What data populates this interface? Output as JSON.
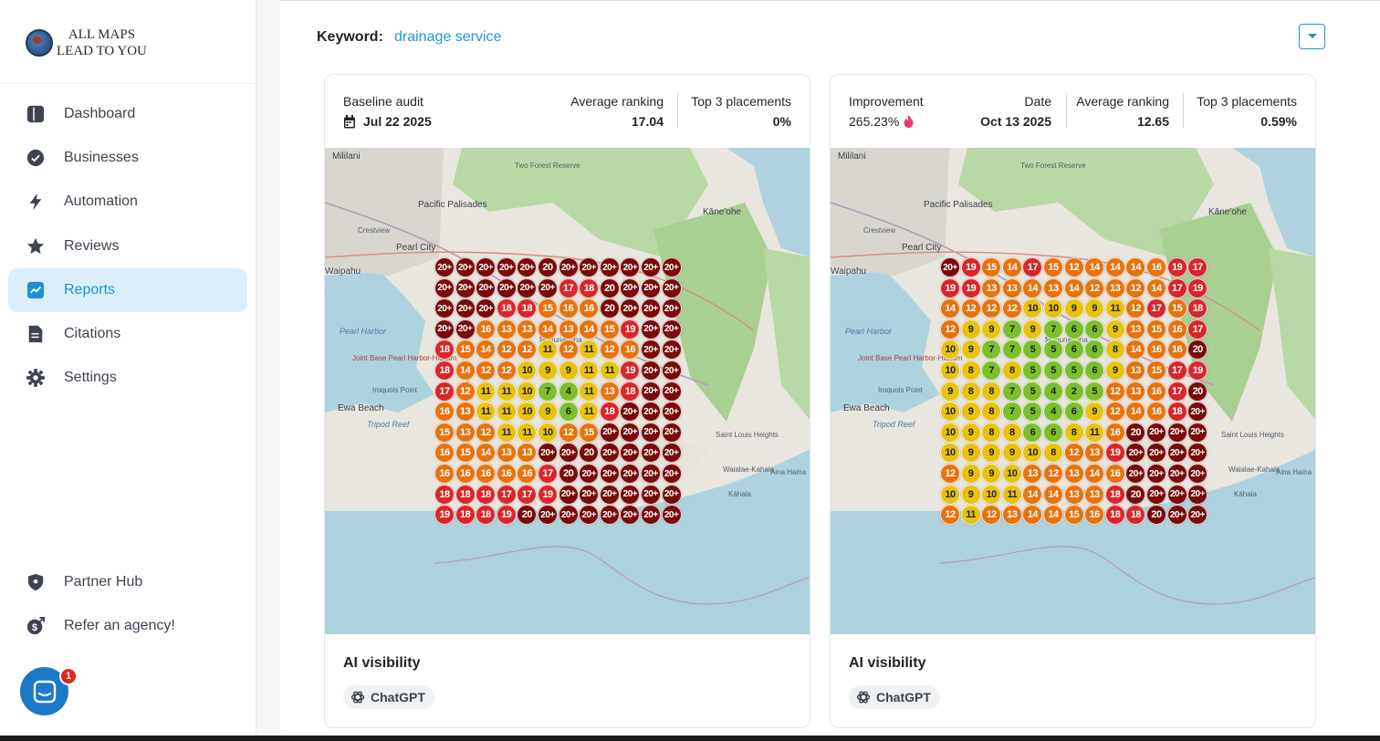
{
  "brand": {
    "line1": "ALL MAPS",
    "line2": "LEAD TO YOU"
  },
  "nav": {
    "items": [
      {
        "label": "Dashboard",
        "icon": "dashboard-icon"
      },
      {
        "label": "Businesses",
        "icon": "badge-check-icon"
      },
      {
        "label": "Automation",
        "icon": "lightning-icon"
      },
      {
        "label": "Reviews",
        "icon": "star-icon"
      },
      {
        "label": "Reports",
        "icon": "chart-trend-icon",
        "active": true
      },
      {
        "label": "Citations",
        "icon": "document-icon"
      },
      {
        "label": "Settings",
        "icon": "gear-icon"
      }
    ],
    "bottom": [
      {
        "label": "Partner Hub",
        "icon": "shield-icon"
      },
      {
        "label": "Refer an agency!",
        "icon": "dollar-coin-icon"
      }
    ]
  },
  "chat": {
    "badge": "1"
  },
  "keyword": {
    "label": "Keyword:",
    "value": "drainage service"
  },
  "cards": [
    {
      "stats": {
        "baseline_label": "Baseline audit",
        "baseline_date": "Jul 22 2025",
        "avg_label": "Average ranking",
        "avg_value": "17.04",
        "top3_label": "Top 3 placements",
        "top3_value": "0%"
      },
      "grid": [
        [
          "20+",
          "20+",
          "20+",
          "20+",
          "20+",
          "20",
          "20+",
          "20+",
          "20+",
          "20+",
          "20+",
          "20+"
        ],
        [
          "20+",
          "20+",
          "20+",
          "20+",
          "20+",
          "20+",
          "17",
          "18",
          "20",
          "20+",
          "20+",
          "20+"
        ],
        [
          "20+",
          "20+",
          "20+",
          "18",
          "18",
          "15",
          "16",
          "16",
          "20",
          "20+",
          "20+",
          "20+"
        ],
        [
          "20+",
          "20+",
          "16",
          "13",
          "13",
          "14",
          "13",
          "14",
          "15",
          "19",
          "20+",
          "20+"
        ],
        [
          "18",
          "15",
          "14",
          "12",
          "12",
          "11",
          "12",
          "11",
          "12",
          "16",
          "20+",
          "20+"
        ],
        [
          "18",
          "14",
          "12",
          "12",
          "10",
          "9",
          "9",
          "11",
          "11",
          "19",
          "20+",
          "20+"
        ],
        [
          "17",
          "12",
          "11",
          "11",
          "10",
          "7",
          "4",
          "11",
          "13",
          "18",
          "20+",
          "20+"
        ],
        [
          "16",
          "13",
          "11",
          "11",
          "10",
          "9",
          "6",
          "11",
          "18",
          "20+",
          "20+",
          "20+"
        ],
        [
          "15",
          "13",
          "12",
          "11",
          "11",
          "10",
          "12",
          "15",
          "20+",
          "20+",
          "20+",
          "20+"
        ],
        [
          "16",
          "15",
          "14",
          "13",
          "13",
          "20+",
          "20+",
          "20",
          "20+",
          "20+",
          "20+",
          "20+"
        ],
        [
          "16",
          "16",
          "16",
          "16",
          "16",
          "17",
          "20",
          "20+",
          "20+",
          "20+",
          "20+",
          "20+"
        ],
        [
          "18",
          "18",
          "18",
          "17",
          "17",
          "19",
          "20+",
          "20+",
          "20+",
          "20+",
          "20+",
          "20+"
        ],
        [
          "19",
          "18",
          "18",
          "19",
          "20",
          "20+",
          "20+",
          "20+",
          "20+",
          "20+",
          "20+",
          "20+"
        ]
      ],
      "footer": {
        "title": "AI visibility",
        "chip": "ChatGPT"
      }
    },
    {
      "stats": {
        "improvement_label": "Improvement",
        "improvement_value": "265.23%",
        "date_label": "Date",
        "date_value": "Oct 13 2025",
        "avg_label": "Average ranking",
        "avg_value": "12.65",
        "top3_label": "Top 3 placements",
        "top3_value": "0.59%"
      },
      "grid": [
        [
          "20+",
          "19",
          "15",
          "14",
          "17",
          "15",
          "12",
          "14",
          "14",
          "14",
          "16",
          "19",
          "17"
        ],
        [
          "19",
          "19",
          "13",
          "13",
          "14",
          "13",
          "14",
          "12",
          "13",
          "12",
          "14",
          "17",
          "19"
        ],
        [
          "14",
          "12",
          "12",
          "12",
          "10",
          "10",
          "9",
          "9",
          "11",
          "12",
          "17",
          "15",
          "18"
        ],
        [
          "12",
          "9",
          "9",
          "7",
          "9",
          "7",
          "6",
          "6",
          "9",
          "13",
          "15",
          "16",
          "17"
        ],
        [
          "10",
          "9",
          "7",
          "7",
          "5",
          "5",
          "6",
          "6",
          "8",
          "14",
          "16",
          "16",
          "20"
        ],
        [
          "10",
          "8",
          "7",
          "8",
          "5",
          "5",
          "5",
          "6",
          "9",
          "13",
          "15",
          "17",
          "19"
        ],
        [
          "9",
          "8",
          "8",
          "7",
          "5",
          "4",
          "2",
          "5",
          "12",
          "13",
          "16",
          "17",
          "20"
        ],
        [
          "10",
          "9",
          "8",
          "7",
          "5",
          "4",
          "6",
          "9",
          "12",
          "14",
          "16",
          "18",
          "20+"
        ],
        [
          "10",
          "9",
          "8",
          "8",
          "6",
          "6",
          "8",
          "11",
          "16",
          "20",
          "20+",
          "20+",
          "20+"
        ],
        [
          "10",
          "9",
          "9",
          "9",
          "10",
          "8",
          "12",
          "13",
          "19",
          "20+",
          "20+",
          "20+",
          "20+"
        ],
        [
          "12",
          "9",
          "9",
          "10",
          "13",
          "12",
          "13",
          "14",
          "16",
          "20+",
          "20+",
          "20+",
          "20+"
        ],
        [
          "10",
          "9",
          "10",
          "11",
          "14",
          "14",
          "13",
          "13",
          "18",
          "20",
          "20+",
          "20+",
          "20+"
        ],
        [
          "12",
          "11",
          "12",
          "13",
          "14",
          "14",
          "15",
          "16",
          "18",
          "18",
          "20",
          "20+",
          "20+"
        ]
      ],
      "footer": {
        "title": "AI visibility",
        "chip": "ChatGPT"
      }
    }
  ],
  "map_labels": [
    "Mililani",
    "Pacific Palisades",
    "Crestview",
    "Pearl City",
    "Waipahu",
    "Pearl Harbor",
    "Joint Base Pearl Harbor-Hickam",
    "Iroquois Point",
    "Ewa Beach",
    "Tripod Reef",
    "Kāne'ohe",
    "Saint Louis Heights",
    "Kāhala",
    "Waialae-Kahala",
    "Aina Haina",
    "Two Forest Reserve",
    "Mapunapuna"
  ],
  "colors": {
    "accent": "#1d8fd4",
    "dark_red": "#7a0a0a",
    "red": "#d9262a",
    "orange": "#e8720c",
    "yellow": "#e8c20e",
    "green": "#7cbf2a"
  }
}
